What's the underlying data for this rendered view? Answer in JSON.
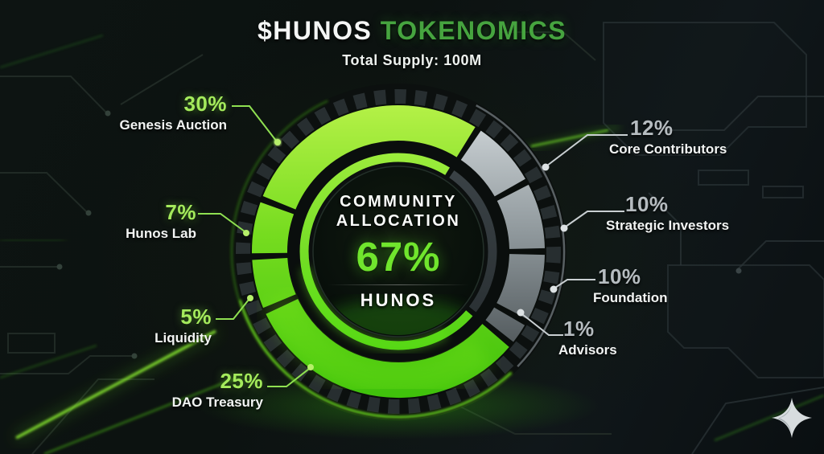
{
  "header": {
    "title_symbol": "$HUNOS",
    "title_accent": "TOKENOMICS",
    "subtitle": "Total Supply: 100M"
  },
  "chart_data": {
    "type": "pie",
    "variant": "donut",
    "title": "$HUNOS TOKENOMICS",
    "subtitle": "Total Supply: 100M",
    "total_supply": "100M",
    "unit": "%",
    "total": 100,
    "direction": "clockwise",
    "segments": [
      {
        "label": "Core Contributors",
        "pct": "12%",
        "value": 12,
        "group": "other",
        "color": "silver"
      },
      {
        "label": "Strategic Investors",
        "pct": "10%",
        "value": 10,
        "group": "other",
        "color": "silver"
      },
      {
        "label": "Foundation",
        "pct": "10%",
        "value": 10,
        "group": "other",
        "color": "silver"
      },
      {
        "label": "Advisors",
        "pct": "1%",
        "value": 1,
        "group": "other",
        "color": "silver"
      },
      {
        "label": "DAO Treasury",
        "pct": "25%",
        "value": 25,
        "group": "community",
        "color": "green"
      },
      {
        "label": "Liquidity",
        "pct": "5%",
        "value": 5,
        "group": "community",
        "color": "green"
      },
      {
        "label": "Hunos Lab",
        "pct": "7%",
        "value": 7,
        "group": "community",
        "color": "green"
      },
      {
        "label": "Genesis Auction",
        "pct": "30%",
        "value": 30,
        "group": "community",
        "color": "green"
      }
    ],
    "center_label": {
      "line1": "COMMUNITY",
      "line2": "ALLOCATION",
      "value": "67%",
      "token": "HUNOS"
    }
  },
  "colors": {
    "ring_green_light": "#b9f24a",
    "ring_green_dark": "#3cc00a",
    "ring_grey_light": "#d4dadd",
    "ring_grey_dark": "#464d50",
    "accent_title_green": "#46a43f",
    "percent_green": "#a4ea5c",
    "percent_grey": "#b6bcc0",
    "background": "#0c1210"
  },
  "icons": {
    "logo": "sparkle"
  }
}
